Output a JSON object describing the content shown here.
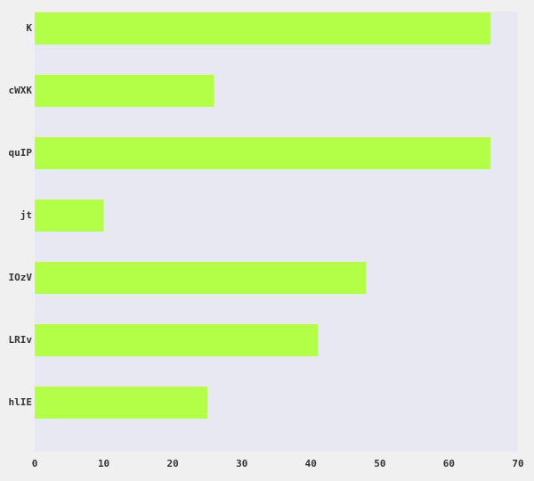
{
  "chart_data": {
    "type": "bar",
    "orientation": "horizontal",
    "categories": [
      "K",
      "cWXK",
      "quIP",
      "jt",
      "IOzV",
      "LRIv",
      "hlIE"
    ],
    "values": [
      66,
      26,
      66,
      10,
      48,
      41,
      25
    ],
    "xlim": [
      0,
      70
    ],
    "xticks": [
      0,
      10,
      20,
      30,
      40,
      50,
      60,
      70
    ],
    "grid": false,
    "title": "",
    "xlabel": "",
    "ylabel": ""
  },
  "colors": {
    "bar": "#b3ff47",
    "plot_background": "#e8e8f2",
    "page_background": "#f0f0f0",
    "text": "#333333"
  }
}
